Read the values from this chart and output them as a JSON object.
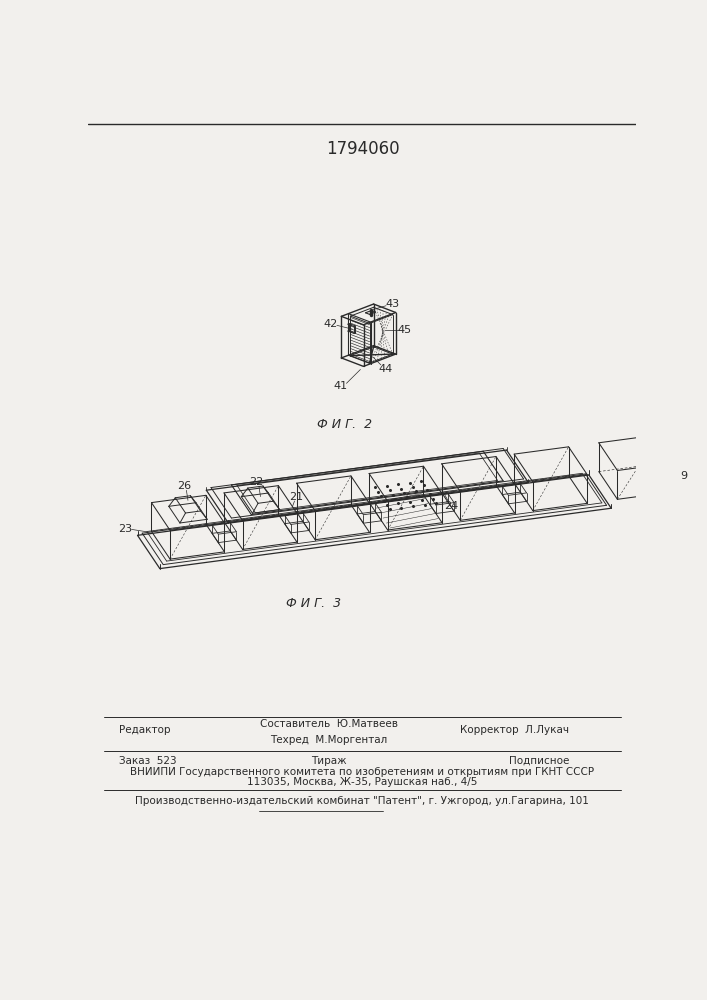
{
  "patent_number": "1794060",
  "bg_color": "#f2f0ed",
  "line_color": "#2a2a2a",
  "fig2_caption": "Ф И Г.  2",
  "fig3_caption": "Ф И Г.  3",
  "footer": {
    "editor_label": "Редактор",
    "composer": "Составитель  Ю.Матвеев",
    "techred": "Техред  М.Моргентал",
    "corrector": "Корректор  Л.Лукач",
    "order": "Заказ  523",
    "tirazh": "Тираж",
    "podpisnoe": "Подписное",
    "vniipи": "ВНИИПИ Государственного комитета по изобретениям и открытиям при ГКНТ СССР",
    "address": "113035, Москва, Ж-35, Раушская наб., 4/5",
    "patent_plant": "Производственно-издательский комбинат \"Патент\", г. Ужгород, ул.Гагарина, 101"
  }
}
